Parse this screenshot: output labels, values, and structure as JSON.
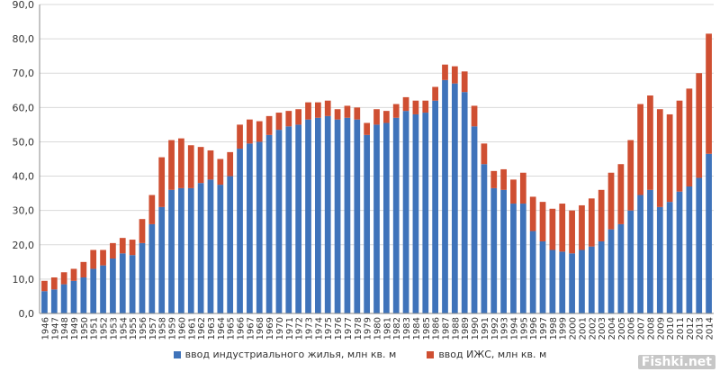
{
  "chart_data": {
    "type": "bar",
    "stacked": true,
    "categories": [
      "1946",
      "1947",
      "1948",
      "1949",
      "1950",
      "1951",
      "1952",
      "1953",
      "1954",
      "1955",
      "1956",
      "1957",
      "1958",
      "1959",
      "1960",
      "1961",
      "1962",
      "1963",
      "1964",
      "1965",
      "1966",
      "1967",
      "1968",
      "1969",
      "1970",
      "1971",
      "1972",
      "1973",
      "1974",
      "1975",
      "1976",
      "1977",
      "1978",
      "1979",
      "1980",
      "1981",
      "1982",
      "1983",
      "1984",
      "1985",
      "1986",
      "1987",
      "1988",
      "1989",
      "1990",
      "1991",
      "1992",
      "1993",
      "1994",
      "1995",
      "1996",
      "1997",
      "1998",
      "1999",
      "2000",
      "2001",
      "2002",
      "2003",
      "2004",
      "2005",
      "2006",
      "2007",
      "2008",
      "2009",
      "2010",
      "2011",
      "2012",
      "2013",
      "2014"
    ],
    "series": [
      {
        "name": "ввод индустриального жилья, млн кв. м",
        "color": "#3F73BA",
        "values": [
          6.5,
          7.0,
          8.5,
          9.5,
          10.5,
          13.0,
          14.0,
          16.0,
          17.5,
          17.0,
          20.5,
          26.0,
          31.0,
          36.0,
          36.5,
          36.5,
          38.0,
          39.0,
          37.5,
          40.0,
          48.0,
          49.5,
          50.0,
          52.0,
          53.5,
          54.5,
          55.0,
          56.5,
          57.0,
          57.5,
          56.5,
          57.0,
          56.5,
          52.0,
          55.0,
          55.5,
          57.0,
          59.0,
          58.0,
          58.5,
          62.0,
          68.0,
          67.0,
          64.5,
          54.5,
          43.5,
          36.5,
          36.0,
          32.0,
          32.0,
          24.0,
          21.0,
          18.5,
          18.0,
          17.5,
          18.5,
          19.5,
          21.0,
          24.5,
          26.0,
          30.0,
          34.5,
          36.0,
          31.0,
          32.5,
          35.5,
          37.0,
          39.5,
          46.5
        ]
      },
      {
        "name": "ввод ИЖС, млн кв. м",
        "color": "#CF4F32",
        "values": [
          3.0,
          3.5,
          3.5,
          3.5,
          4.5,
          5.5,
          4.5,
          4.5,
          4.5,
          4.5,
          7.0,
          8.5,
          14.5,
          14.5,
          14.5,
          12.5,
          10.5,
          8.5,
          7.5,
          7.0,
          7.0,
          7.0,
          6.0,
          5.5,
          5.0,
          4.5,
          4.5,
          5.0,
          4.5,
          4.5,
          3.0,
          3.5,
          3.5,
          3.5,
          4.5,
          3.5,
          4.0,
          4.0,
          4.0,
          3.5,
          4.0,
          4.5,
          5.0,
          6.0,
          6.0,
          6.0,
          5.0,
          6.0,
          7.0,
          9.0,
          10.0,
          11.5,
          12.0,
          14.0,
          12.5,
          13.0,
          14.0,
          15.0,
          16.5,
          17.5,
          20.5,
          26.5,
          27.5,
          28.5,
          25.5,
          26.5,
          28.5,
          30.5,
          35.0
        ]
      }
    ],
    "y_tick_labels": [
      "0,0",
      "10,0",
      "20,0",
      "30,0",
      "40,0",
      "50,0",
      "60,0",
      "70,0",
      "80,0",
      "90,0"
    ],
    "ylim": [
      0,
      90
    ],
    "grid": true,
    "legend_position": "bottom"
  },
  "watermark": "Fishki.net"
}
